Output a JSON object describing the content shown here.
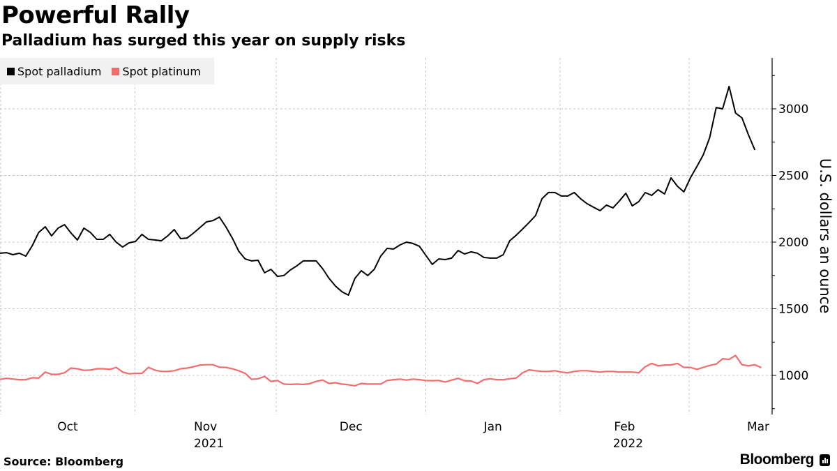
{
  "header": {
    "title": "Powerful Rally",
    "subtitle": "Palladium has surged this year on supply risks"
  },
  "footer": {
    "source": "Source: Bloomberg",
    "brand": "Bloomberg"
  },
  "chart_data": {
    "type": "line",
    "title": "Powerful Rally",
    "subtitle": "Palladium has surged this year on supply risks",
    "xlabel": "",
    "ylabel": "U.S. dollars an ounce",
    "ylim": [
      700,
      3400
    ],
    "y_ticks": [
      1000,
      1500,
      2000,
      2500,
      3000
    ],
    "y_tick_labels": [
      "1000",
      "1500",
      "2000",
      "2500",
      "3000"
    ],
    "y_minor_ticks": [
      750,
      1250,
      1750,
      2250,
      2750,
      3250
    ],
    "y_axis_side": "right",
    "grid": true,
    "legend_position": "top-left",
    "x_month_labels": [
      {
        "label": "Oct",
        "year": ""
      },
      {
        "label": "Nov",
        "year": "2021"
      },
      {
        "label": "Dec",
        "year": ""
      },
      {
        "label": "Jan",
        "year": ""
      },
      {
        "label": "Feb",
        "year": "2022"
      },
      {
        "label": "Mar",
        "year": ""
      }
    ],
    "x_range_days": [
      0,
      116
    ],
    "month_boundaries_day_index": [
      -1,
      20.9,
      42.8,
      66.0,
      86.8,
      106.8
    ],
    "series": [
      {
        "name": "Spot palladium",
        "color": "#000000",
        "values": [
          1917,
          1921,
          1906,
          1917,
          1895,
          1974,
          2073,
          2115,
          2047,
          2105,
          2131,
          2068,
          2016,
          2105,
          2073,
          2021,
          2021,
          2058,
          2000,
          1963,
          1995,
          2005,
          2058,
          2021,
          2016,
          2010,
          2047,
          2094,
          2026,
          2031,
          2068,
          2110,
          2152,
          2162,
          2188,
          2115,
          2031,
          1932,
          1874,
          1859,
          1864,
          1770,
          1796,
          1743,
          1749,
          1791,
          1822,
          1859,
          1859,
          1859,
          1801,
          1728,
          1670,
          1628,
          1602,
          1728,
          1786,
          1749,
          1796,
          1895,
          1953,
          1948,
          1979,
          2000,
          1990,
          1969,
          1901,
          1833,
          1874,
          1869,
          1880,
          1937,
          1911,
          1927,
          1917,
          1885,
          1880,
          1880,
          1906,
          2010,
          2052,
          2099,
          2147,
          2199,
          2325,
          2372,
          2372,
          2346,
          2346,
          2372,
          2325,
          2288,
          2262,
          2236,
          2278,
          2257,
          2309,
          2367,
          2272,
          2304,
          2372,
          2351,
          2393,
          2361,
          2482,
          2419,
          2377,
          2482,
          2566,
          2655,
          2785,
          3010,
          3000,
          3168,
          2969,
          2932,
          2806,
          2691
        ]
      },
      {
        "name": "Spot platinum",
        "color": "#f36c6c",
        "values": [
          970,
          978,
          973,
          968,
          968,
          982,
          980,
          1025,
          1008,
          1008,
          1020,
          1055,
          1050,
          1038,
          1040,
          1050,
          1050,
          1045,
          1060,
          1025,
          1012,
          1015,
          1015,
          1060,
          1040,
          1030,
          1030,
          1035,
          1050,
          1055,
          1065,
          1078,
          1080,
          1080,
          1062,
          1060,
          1050,
          1035,
          1015,
          970,
          975,
          992,
          955,
          962,
          935,
          932,
          935,
          932,
          938,
          955,
          965,
          940,
          945,
          935,
          930,
          922,
          940,
          935,
          935,
          935,
          962,
          968,
          972,
          965,
          972,
          968,
          962,
          960,
          962,
          950,
          965,
          978,
          960,
          958,
          940,
          968,
          975,
          968,
          968,
          975,
          980,
          1020,
          1042,
          1035,
          1030,
          1030,
          1035,
          1025,
          1020,
          1030,
          1035,
          1035,
          1030,
          1025,
          1030,
          1030,
          1025,
          1025,
          1025,
          1020,
          1065,
          1090,
          1072,
          1078,
          1078,
          1090,
          1060,
          1060,
          1045,
          1060,
          1075,
          1085,
          1125,
          1120,
          1150,
          1080,
          1072,
          1080,
          1058
        ]
      }
    ]
  }
}
